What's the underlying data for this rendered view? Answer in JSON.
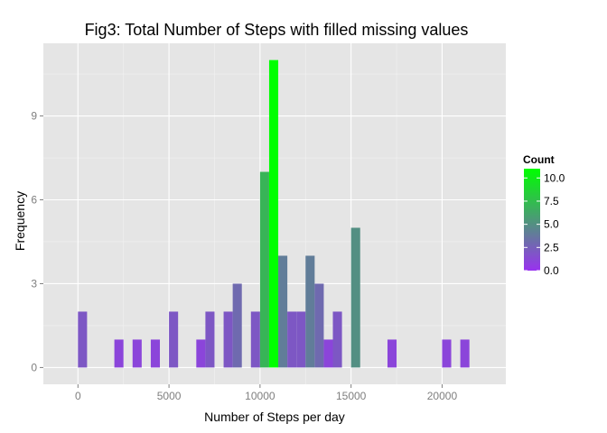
{
  "chart_data": {
    "type": "bar",
    "title": "Fig3: Total Number of Steps with filled missing values",
    "xlabel": "Number of Steps per day",
    "ylabel": "Frequency",
    "xlim": [
      -1900,
      23500
    ],
    "ylim": [
      -0.6,
      11.6
    ],
    "xticks": [
      0,
      5000,
      10000,
      15000,
      20000
    ],
    "xtick_labels": [
      "0",
      "5000",
      "10000",
      "15000",
      "20000"
    ],
    "yticks": [
      0,
      3,
      6,
      9
    ],
    "ytick_labels": [
      "0",
      "3",
      "6",
      "9"
    ],
    "bin_width": 500,
    "bins": [
      {
        "center": 250,
        "count": 2
      },
      {
        "center": 2250,
        "count": 1
      },
      {
        "center": 3250,
        "count": 1
      },
      {
        "center": 4250,
        "count": 1
      },
      {
        "center": 5250,
        "count": 2
      },
      {
        "center": 6750,
        "count": 1
      },
      {
        "center": 7250,
        "count": 2
      },
      {
        "center": 8250,
        "count": 2
      },
      {
        "center": 8750,
        "count": 3
      },
      {
        "center": 9750,
        "count": 2
      },
      {
        "center": 10250,
        "count": 7
      },
      {
        "center": 10750,
        "count": 11
      },
      {
        "center": 11250,
        "count": 4
      },
      {
        "center": 11750,
        "count": 2
      },
      {
        "center": 12250,
        "count": 2
      },
      {
        "center": 12750,
        "count": 4
      },
      {
        "center": 13250,
        "count": 3
      },
      {
        "center": 13750,
        "count": 1
      },
      {
        "center": 14250,
        "count": 2
      },
      {
        "center": 15250,
        "count": 5
      },
      {
        "center": 17250,
        "count": 1
      },
      {
        "center": 20250,
        "count": 1
      },
      {
        "center": 21250,
        "count": 1
      }
    ],
    "legend": {
      "title": "Count",
      "labels": [
        "10.0",
        "7.5",
        "5.0",
        "2.5",
        "0.0"
      ],
      "values": [
        10,
        7.5,
        5,
        2.5,
        0
      ],
      "scale_min": 0,
      "scale_max": 11,
      "placement": "right"
    },
    "colors": {
      "low": "#9932F0",
      "high": "#00FF00",
      "panel": "#E5E5E5",
      "grid_major": "#FFFFFF",
      "grid_minor": "#F2F2F2"
    }
  }
}
